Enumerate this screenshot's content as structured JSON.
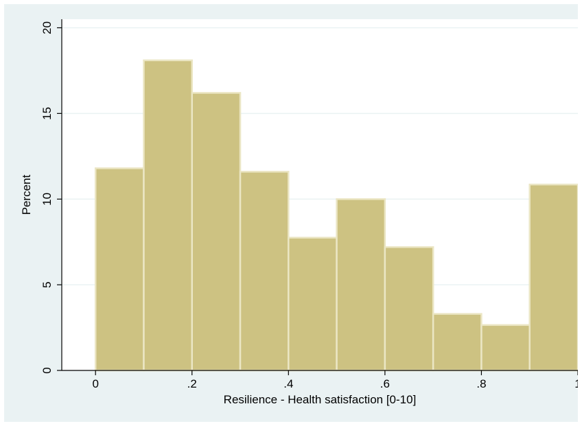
{
  "chart_data": {
    "type": "bar",
    "subtype": "histogram",
    "xlabel": "Resilience - Health satisfaction [0-10]",
    "ylabel": "Percent",
    "xlim": [
      -0.07,
      1.0
    ],
    "ylim": [
      0,
      20.5
    ],
    "bin_width": 0.1,
    "bins": [
      {
        "start": 0.0,
        "end": 0.1,
        "value": 11.8
      },
      {
        "start": 0.1,
        "end": 0.2,
        "value": 18.1
      },
      {
        "start": 0.2,
        "end": 0.3,
        "value": 16.2
      },
      {
        "start": 0.3,
        "end": 0.4,
        "value": 11.6
      },
      {
        "start": 0.4,
        "end": 0.5,
        "value": 7.75
      },
      {
        "start": 0.5,
        "end": 0.6,
        "value": 10.0
      },
      {
        "start": 0.6,
        "end": 0.7,
        "value": 7.2
      },
      {
        "start": 0.7,
        "end": 0.8,
        "value": 3.3
      },
      {
        "start": 0.8,
        "end": 0.9,
        "value": 2.65
      },
      {
        "start": 0.9,
        "end": 1.0,
        "value": 10.85
      }
    ],
    "x_ticks": [
      {
        "value": 0.0,
        "label": "0"
      },
      {
        "value": 0.2,
        "label": ".2"
      },
      {
        "value": 0.4,
        "label": ".4"
      },
      {
        "value": 0.6,
        "label": ".6"
      },
      {
        "value": 0.8,
        "label": ".8"
      },
      {
        "value": 1.0,
        "label": "1"
      }
    ],
    "y_ticks": [
      {
        "value": 0,
        "label": "0"
      },
      {
        "value": 5,
        "label": "5"
      },
      {
        "value": 10,
        "label": "10"
      },
      {
        "value": 15,
        "label": "15"
      },
      {
        "value": 20,
        "label": "20"
      }
    ],
    "grid": true,
    "colors": {
      "outer_background": "#eaf2f3",
      "plot_background": "#ffffff",
      "bar_fill": "#cdc282",
      "bar_edge": "#ebe6c4",
      "grid": "#eaf2f3",
      "axis": "#000000"
    }
  }
}
